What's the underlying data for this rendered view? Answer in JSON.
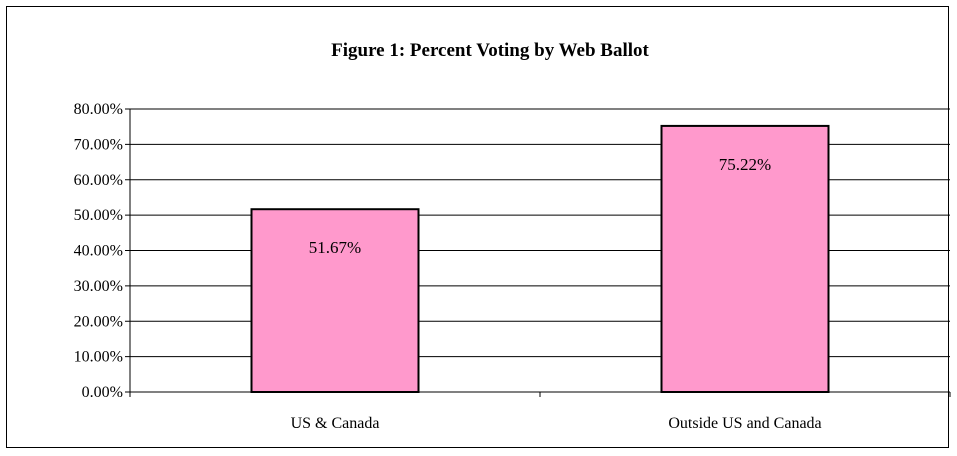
{
  "chart_data": {
    "type": "bar",
    "title": "Figure 1: Percent Voting by Web Ballot",
    "categories": [
      "US & Canada",
      "Outside US and Canada"
    ],
    "values": [
      51.67,
      75.22
    ],
    "data_labels": [
      "51.67%",
      "75.22%"
    ],
    "ylim": [
      0,
      80
    ],
    "yticks": [
      "0.00%",
      "10.00%",
      "20.00%",
      "30.00%",
      "40.00%",
      "50.00%",
      "60.00%",
      "70.00%",
      "80.00%"
    ],
    "ytick_values": [
      0,
      10,
      20,
      30,
      40,
      50,
      60,
      70,
      80
    ],
    "grid": true,
    "legend": "none",
    "bar_color": "#ff99cc",
    "xlabel": "",
    "ylabel": ""
  }
}
